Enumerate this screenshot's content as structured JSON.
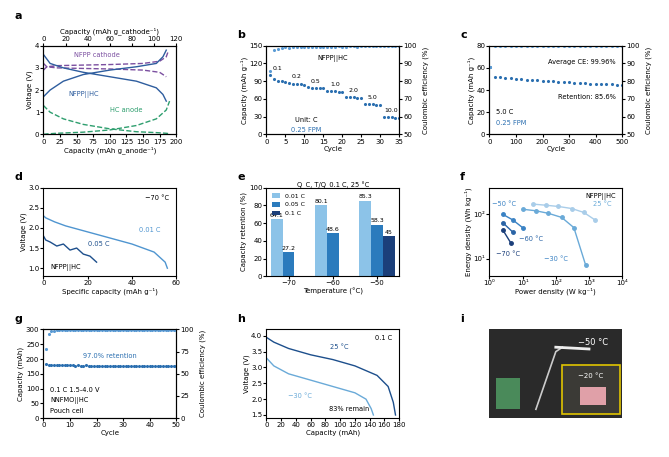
{
  "chart_data": [
    {
      "panel": "a",
      "type": "line",
      "x_label": "Capacity (mAh g_anode⁻¹)",
      "x2_label": "Capacity (mAh g_cathode⁻¹)",
      "y_label": "Voltage (V)",
      "xlim": [
        0,
        200
      ],
      "xticks": [
        0,
        25,
        50,
        75,
        100,
        125,
        150,
        175,
        200
      ],
      "x2lim": [
        0,
        120
      ],
      "x2ticks": [
        0,
        20,
        40,
        60,
        80,
        100,
        120
      ],
      "ylim": [
        0,
        4
      ],
      "yticks": [
        0,
        1,
        2,
        3,
        4
      ],
      "annotations": [
        "NFPP cathode",
        "NFPP||HC",
        "HC anode"
      ],
      "series": [
        {
          "color": "#7b4fa0",
          "line_style": "dashed",
          "x": [
            0,
            5,
            20,
            50,
            100,
            150,
            175,
            185,
            188,
            null,
            0,
            5,
            20,
            50,
            100,
            150,
            175,
            185
          ],
          "values": [
            2.9,
            3.05,
            3.1,
            3.12,
            3.15,
            3.2,
            3.3,
            3.5,
            3.75,
            null,
            3.2,
            3.05,
            3.0,
            2.98,
            2.95,
            2.9,
            2.8,
            2.6
          ]
        },
        {
          "color": "#2e9e6e",
          "line_style": "dashed",
          "x": [
            0,
            10,
            30,
            60,
            100,
            140,
            170,
            185,
            190,
            null,
            0,
            5,
            20,
            60,
            100,
            140,
            170,
            185,
            190
          ],
          "values": [
            1.3,
            1.0,
            0.7,
            0.45,
            0.25,
            0.12,
            0.08,
            0.05,
            0.03,
            null,
            0.0,
            0.02,
            0.05,
            0.1,
            0.2,
            0.4,
            0.7,
            1.1,
            1.5
          ]
        },
        {
          "color": "#2e5d9e",
          "line_style": "solid",
          "x": [
            0,
            10,
            30,
            60,
            100,
            140,
            170,
            180,
            185,
            null,
            0,
            10,
            30,
            60,
            100,
            140,
            170,
            180,
            185
          ],
          "values": [
            1.7,
            2.0,
            2.4,
            2.7,
            2.9,
            3.05,
            3.2,
            3.5,
            3.8,
            null,
            3.6,
            3.2,
            3.0,
            2.8,
            2.6,
            2.4,
            2.1,
            1.8,
            1.5
          ]
        }
      ]
    },
    {
      "panel": "b",
      "type": "scatter",
      "x_label": "Cycle",
      "y_label": "Capacity (mAh g⁻¹)",
      "y2_label": "Coulombic efficiency (%)",
      "xlim": [
        0,
        35
      ],
      "xticks": [
        0,
        5,
        10,
        15,
        20,
        25,
        30,
        35
      ],
      "ylim": [
        0,
        150
      ],
      "yticks": [
        0,
        30,
        60,
        90,
        120,
        150
      ],
      "y2lim": [
        50,
        100
      ],
      "y2ticks": [
        50,
        60,
        70,
        80,
        90,
        100
      ],
      "annotations": [
        "Unit: C",
        "0.25 FPM",
        "NFPP||HC"
      ],
      "rate_labels": [
        "0.1",
        "0.2",
        "0.5",
        "1.0",
        "2.0",
        "5.0",
        "10.0"
      ],
      "x": [
        1,
        2,
        3,
        4,
        5,
        6,
        7,
        8,
        9,
        10,
        11,
        12,
        13,
        14,
        15,
        16,
        17,
        18,
        19,
        20,
        21,
        22,
        23,
        24,
        25,
        26,
        27,
        28,
        29,
        30,
        31,
        32,
        33,
        34,
        35
      ],
      "series": [
        {
          "color": "#2b6fb0",
          "marker": "o",
          "values": [
            101,
            93,
            91,
            90,
            89,
            87,
            86,
            85,
            85,
            84,
            80,
            79,
            79,
            78,
            78,
            74,
            73,
            73,
            72,
            72,
            64,
            63,
            63,
            62,
            62,
            52,
            51,
            51,
            50,
            50,
            30,
            29,
            29,
            28,
            28
          ]
        },
        {
          "color": "#5a9bd5",
          "marker": "o",
          "axis": "y2",
          "values": [
            86,
            97.5,
            98.4,
            98.8,
            99.0,
            98.9,
            99.1,
            99.2,
            99.0,
            99.2,
            99.3,
            99.1,
            99.4,
            99.3,
            99.2,
            99.5,
            99.3,
            99.4,
            99.6,
            99.4,
            99.5,
            99.7,
            99.6,
            99.5,
            99.7,
            99.8,
            99.6,
            99.7,
            99.9,
            99.8,
            99.9,
            99.8,
            100,
            99.9,
            99.8
          ]
        }
      ]
    },
    {
      "panel": "c",
      "type": "scatter",
      "x_label": "Cycle",
      "y_label": "Capacity (mAh g⁻¹)",
      "y2_label": "Coulombic efficiency (%)",
      "xlim": [
        0,
        500
      ],
      "xticks": [
        0,
        100,
        200,
        300,
        400,
        500
      ],
      "ylim": [
        0,
        80
      ],
      "yticks": [
        0,
        20,
        40,
        60,
        80
      ],
      "y2lim": [
        50,
        100
      ],
      "y2ticks": [
        50,
        60,
        70,
        80,
        90,
        100
      ],
      "annotations": [
        "Average CE: 99.96%",
        "Retention: 85.6%",
        "5.0 C",
        "0.25 FPM"
      ],
      "x": [
        1,
        20,
        40,
        60,
        80,
        100,
        120,
        140,
        160,
        180,
        200,
        220,
        240,
        260,
        280,
        300,
        320,
        340,
        360,
        380,
        400,
        420,
        440,
        460,
        480,
        500
      ],
      "series": [
        {
          "color": "#2b6fb0",
          "marker": "o",
          "values": [
            61,
            52,
            51.5,
            51,
            50.6,
            50.2,
            49.8,
            49.4,
            49,
            48.7,
            48.4,
            48.1,
            47.8,
            47.5,
            47.2,
            46.9,
            46.6,
            46.3,
            46,
            45.8,
            45.6,
            45.4,
            45.2,
            45,
            44.8,
            44.6
          ]
        },
        {
          "color": "#5a9bd5",
          "marker": "o",
          "axis": "y2",
          "values": [
            88,
            99.9,
            99.95,
            99.96,
            99.97,
            99.96,
            99.95,
            99.97,
            99.96,
            99.98,
            99.96,
            99.95,
            99.97,
            99.96,
            99.97,
            99.98,
            99.96,
            99.95,
            99.97,
            99.96,
            99.98,
            99.97,
            99.96,
            99.97,
            99.98,
            99.96
          ]
        }
      ]
    },
    {
      "panel": "d",
      "type": "line",
      "x_label": "Specific capacity (mAh g⁻¹)",
      "y_label": "Voltage (V)",
      "xlim": [
        0,
        60
      ],
      "xticks": [
        0,
        20,
        40,
        60
      ],
      "ylim": [
        0.8,
        3.0
      ],
      "yticks": [
        1.0,
        1.5,
        2.0,
        2.5,
        3.0
      ],
      "annotations": [
        "−70 °C",
        "0.01 C",
        "0.05 C",
        "NFPP||HC"
      ],
      "series": [
        {
          "color": "#4f95d0",
          "line_style": "solid",
          "x": [
            0,
            1,
            5,
            10,
            20,
            30,
            40,
            50,
            55,
            56
          ],
          "values": [
            2.3,
            2.25,
            2.15,
            2.05,
            1.9,
            1.75,
            1.6,
            1.4,
            1.15,
            1.0
          ]
        },
        {
          "color": "#1d4f8c",
          "line_style": "solid",
          "x": [
            0,
            1,
            3,
            6,
            9,
            12,
            15,
            18,
            21,
            24
          ],
          "values": [
            1.8,
            1.7,
            1.65,
            1.55,
            1.6,
            1.45,
            1.5,
            1.35,
            1.3,
            1.15
          ]
        }
      ]
    },
    {
      "panel": "e",
      "type": "bar",
      "x_label": "Temperature (°C)",
      "y_label": "Capacity retention (%)",
      "annotations": [
        "Q_C, T/Q_0.1 C, 25 °C"
      ],
      "categories": [
        "−70",
        "−60",
        "−50"
      ],
      "ylim": [
        0,
        100
      ],
      "yticks": [
        0,
        20,
        40,
        60,
        80,
        100
      ],
      "legend": "upper left",
      "data_labels": true,
      "series": [
        {
          "name": "0.01 C",
          "color": "#8cc3e8",
          "values": [
            64.1,
            80.1,
            85.3
          ]
        },
        {
          "name": "0.05 C",
          "color": "#2b7bbd",
          "values": [
            27.2,
            48.6,
            58.3
          ]
        },
        {
          "name": "0.1 C",
          "color": "#1b3f7a",
          "values": [
            null,
            null,
            45
          ]
        }
      ]
    },
    {
      "panel": "f",
      "type": "line",
      "log": true,
      "x_label": "Power density (W kg⁻¹)",
      "y_label": "Energy density (Wh kg⁻¹)",
      "xlim": [
        1,
        10000
      ],
      "xticks": [
        {
          "value": 1,
          "label": "10⁰"
        },
        {
          "value": 10,
          "label": "10¹"
        },
        {
          "value": 100,
          "label": "10²"
        },
        {
          "value": 1000,
          "label": "10³"
        },
        {
          "value": 10000,
          "label": "10⁴"
        }
      ],
      "ylim": [
        4,
        400
      ],
      "yticks": [
        {
          "value": 10,
          "label": "10¹"
        },
        {
          "value": 100,
          "label": "10²"
        }
      ],
      "annotations": [
        "NFPP||HC",
        "25 °C",
        "−30 °C",
        "−50 °C",
        "−60 °C",
        "−70 °C"
      ],
      "series": [
        {
          "color": "#a9cde9",
          "marker": "o",
          "line_style": "solid",
          "x": [
            20,
            50,
            120,
            300,
            700,
            1500
          ],
          "values": [
            170,
            160,
            150,
            135,
            110,
            75
          ]
        },
        {
          "color": "#6aaad8",
          "marker": "o",
          "line_style": "solid",
          "x": [
            10,
            25,
            60,
            150,
            350,
            800
          ],
          "values": [
            130,
            120,
            105,
            85,
            50,
            7
          ]
        },
        {
          "color": "#3a82c4",
          "marker": "o",
          "line_style": "solid",
          "x": [
            2.5,
            5,
            10
          ],
          "values": [
            100,
            75,
            50
          ]
        },
        {
          "color": "#2a64a6",
          "marker": "o",
          "line_style": "solid",
          "x": [
            2.5,
            5
          ],
          "values": [
            65,
            40
          ]
        },
        {
          "color": "#1b3f7a",
          "marker": "o",
          "line_style": "solid",
          "x": [
            2.5,
            4.5
          ],
          "values": [
            45,
            22
          ]
        }
      ]
    },
    {
      "panel": "g",
      "type": "scatter",
      "x_label": "Cycle",
      "y_label": "Capacity (mAh)",
      "y2_label": "Coulombic efficiency (%)",
      "xlim": [
        0,
        50
      ],
      "xticks": [
        0,
        10,
        20,
        30,
        40,
        50
      ],
      "ylim": [
        0,
        300
      ],
      "yticks": [
        0,
        50,
        100,
        150,
        200,
        250,
        300
      ],
      "y2lim": [
        0,
        100
      ],
      "y2ticks": [
        0,
        25,
        50,
        75,
        100
      ],
      "annotations": [
        "0.1 C 1.5-4.0 V",
        "NNFMO||HC",
        "Pouch cell",
        "97.0% retention"
      ],
      "x": [
        1,
        2,
        3,
        4,
        5,
        6,
        7,
        8,
        9,
        10,
        11,
        12,
        13,
        14,
        15,
        16,
        17,
        18,
        19,
        20,
        21,
        22,
        23,
        24,
        25,
        26,
        27,
        28,
        29,
        30,
        31,
        32,
        33,
        34,
        35,
        36,
        37,
        38,
        39,
        40,
        41,
        42,
        43,
        44,
        45,
        46,
        47,
        48,
        49,
        50
      ],
      "series": [
        {
          "color": "#2b6fb0",
          "marker": "o",
          "values": [
            182,
            180,
            180,
            179,
            179,
            180,
            179,
            179,
            179,
            179,
            179,
            178,
            179,
            178,
            178,
            179,
            178,
            178,
            178,
            178,
            178,
            178,
            177,
            178,
            178,
            177,
            177,
            178,
            177,
            177,
            177,
            177,
            177,
            177,
            176,
            177,
            177,
            176,
            177,
            177,
            177,
            176,
            177,
            176,
            177,
            176,
            177,
            177,
            176,
            177
          ]
        },
        {
          "color": "#5a9bd5",
          "marker": "o",
          "axis": "y2",
          "values": [
            78,
            95,
            98,
            98.8,
            99.2,
            99.4,
            99.5,
            99.3,
            99.6,
            99.5,
            99.4,
            99.6,
            99.5,
            99.5,
            99.7,
            99.6,
            99.5,
            99.6,
            99.7,
            99.5,
            99.6,
            99.7,
            99.6,
            99.5,
            99.6,
            99.7,
            99.6,
            99.6,
            99.7,
            99.5,
            99.6,
            99.7,
            99.6,
            99.6,
            99.7,
            99.5,
            99.6,
            99.7,
            99.6,
            99.6,
            99.7,
            99.6,
            99.5,
            99.6,
            99.7,
            99.6,
            99.7,
            99.6,
            99.6,
            99.7
          ]
        }
      ]
    },
    {
      "panel": "h",
      "type": "line",
      "x_label": "Capacity (mAh)",
      "y_label": "Voltage (V)",
      "xlim": [
        0,
        180
      ],
      "xticks": [
        0,
        20,
        40,
        60,
        80,
        100,
        120,
        140,
        160,
        180
      ],
      "ylim": [
        1.4,
        4.2
      ],
      "yticks": [
        1.5,
        2.0,
        2.5,
        3.0,
        3.5,
        4.0
      ],
      "annotations": [
        "0.1 C",
        "25 °C",
        "−30 °C",
        "83% remain"
      ],
      "series": [
        {
          "color": "#1d4f8c",
          "line_style": "solid",
          "x": [
            0,
            10,
            30,
            60,
            90,
            120,
            150,
            165,
            172,
            175
          ],
          "values": [
            3.95,
            3.8,
            3.6,
            3.4,
            3.25,
            3.05,
            2.75,
            2.4,
            1.9,
            1.5
          ]
        },
        {
          "color": "#6aaad8",
          "line_style": "solid",
          "x": [
            0,
            10,
            30,
            60,
            90,
            120,
            135,
            142,
            145
          ],
          "values": [
            3.3,
            3.05,
            2.8,
            2.6,
            2.4,
            2.2,
            2.0,
            1.7,
            1.5
          ]
        }
      ]
    }
  ],
  "photo": {
    "panel": "i",
    "texts": [
      "−50 °C",
      "−20 °C"
    ]
  }
}
